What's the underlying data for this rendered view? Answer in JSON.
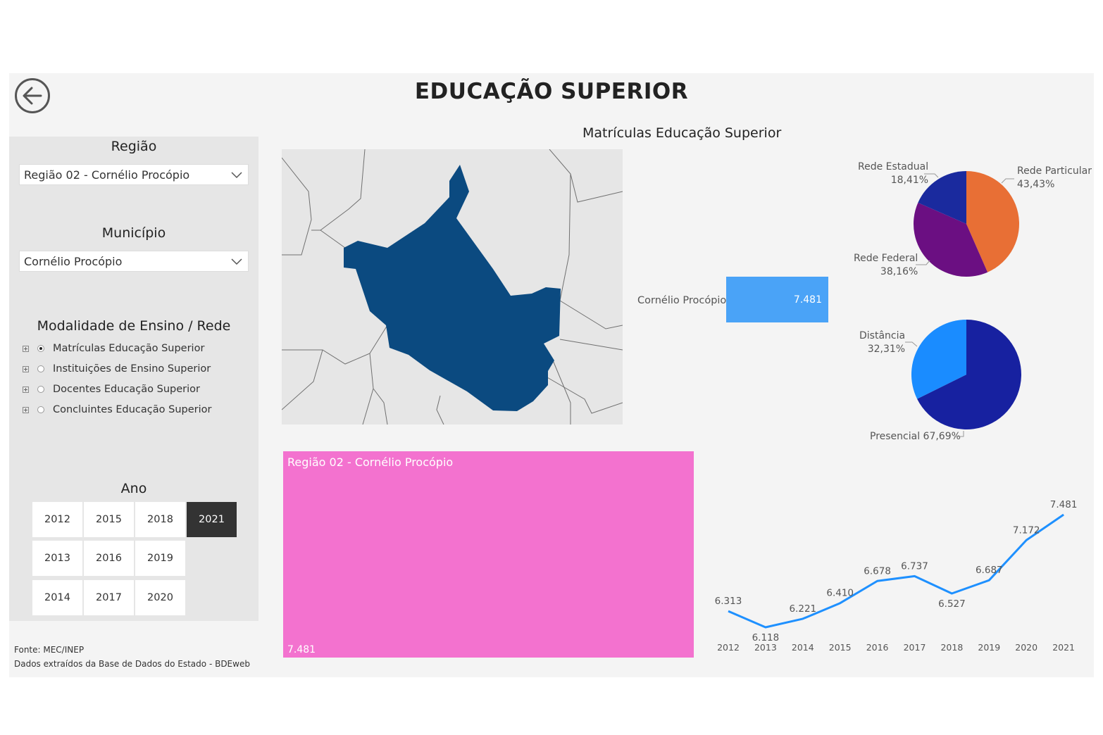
{
  "header": {
    "title": "EDUCAÇÃO SUPERIOR",
    "back_icon": "arrow-left-circle-icon"
  },
  "filters": {
    "regiao": {
      "label": "Região",
      "value": "Região 02 - Cornélio Procópio"
    },
    "municipio": {
      "label": "Município",
      "value": "Cornélio Procópio"
    },
    "modalidade": {
      "label": "Modalidade de Ensino / Rede",
      "items": [
        {
          "label": "Matrículas Educação Superior",
          "selected": true
        },
        {
          "label": "Instituições de Ensino Superior",
          "selected": false
        },
        {
          "label": "Docentes Educação Superior",
          "selected": false
        },
        {
          "label": "Concluintes Educação Superior",
          "selected": false
        }
      ]
    },
    "ano": {
      "label": "Ano",
      "years": [
        "2012",
        "2015",
        "2018",
        "2021",
        "2013",
        "2016",
        "2019",
        "2014",
        "2017",
        "2020"
      ],
      "selected": "2021"
    }
  },
  "footer": {
    "line1": "Fonte: MEC/INEP",
    "line2": "Dados extraídos da Base de Dados do Estado - BDEweb"
  },
  "map": {
    "title": "Matrículas Educação Superior",
    "highlight_color": "#0b4a80",
    "base_color": "#e6e6e6"
  },
  "bar": {
    "label": "Cornélio Procópio",
    "value": "7.481",
    "color": "#4aa3f7"
  },
  "treemap": {
    "label": "Região 02 - Cornélio Procópio",
    "value": "7.481",
    "color": "#f372cf"
  },
  "chart_data": [
    {
      "type": "pie",
      "slices": [
        {
          "name": "Rede Particular",
          "value": 43.43,
          "label": "43,43%",
          "color": "#e86f35"
        },
        {
          "name": "Rede Federal",
          "value": 38.16,
          "label": "38,16%",
          "color": "#6b0f82"
        },
        {
          "name": "Rede Estadual",
          "value": 18.41,
          "label": "18,41%",
          "color": "#1a2a9e"
        }
      ]
    },
    {
      "type": "pie",
      "slices": [
        {
          "name": "Presencial",
          "value": 67.69,
          "label": "67,69%",
          "color": "#1721a0"
        },
        {
          "name": "Distância",
          "value": 32.31,
          "label": "32,31%",
          "color": "#1a8cff"
        }
      ]
    },
    {
      "type": "line",
      "x": [
        "2012",
        "2013",
        "2014",
        "2015",
        "2016",
        "2017",
        "2018",
        "2019",
        "2020",
        "2021"
      ],
      "values": [
        6313,
        6118,
        6221,
        6410,
        6678,
        6737,
        6527,
        6687,
        7172,
        7481
      ],
      "labels": [
        "6.313",
        "6.118",
        "6.221",
        "6.410",
        "6.678",
        "6.737",
        "6.527",
        "6.687",
        "7.172",
        "7.481"
      ],
      "color": "#1e90ff"
    }
  ]
}
